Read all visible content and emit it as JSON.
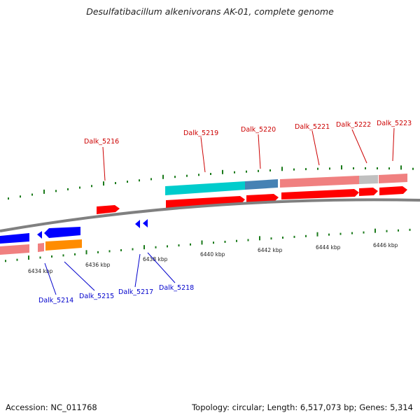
{
  "title": "Desulfatibacillum alkenivorans AK-01, complete genome",
  "footer": {
    "accession": "Accession: NC_011768",
    "summary": "Topology: circular; Length: 6,517,073 bp; Genes: 5,314"
  },
  "colors": {
    "backbone": "#808080",
    "tick": "#1a7a1a",
    "plus_label": "#cc0000",
    "minus_label": "#0000cc",
    "cds_plus": "#ff0000",
    "cds_minus": "#0000ff",
    "cds_orange": "#ff8c00",
    "feature_cyan": "#00cccc",
    "feature_steel": "#4682b4",
    "feature_pink": "#f08080",
    "feature_gray": "#c0c0c0"
  },
  "scale": {
    "ticks": [
      "6434 kbp",
      "6436 kbp",
      "6438 kbp",
      "6440 kbp",
      "6442 kbp",
      "6444 kbp",
      "6446 kbp"
    ]
  },
  "genes": {
    "plus": [
      "Dalk_5216",
      "Dalk_5219",
      "Dalk_5220",
      "Dalk_5221",
      "Dalk_5222",
      "Dalk_5223"
    ],
    "minus": [
      "Dalk_5214",
      "Dalk_5215",
      "Dalk_5217",
      "Dalk_5218"
    ]
  }
}
